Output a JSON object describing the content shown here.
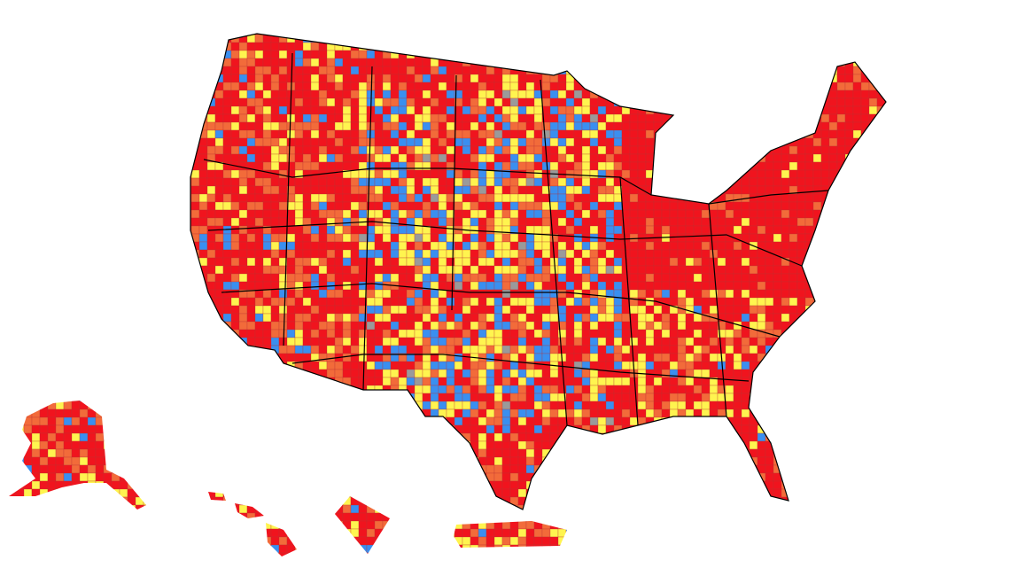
{
  "palette": [
    "#f0141e",
    "#f26b3a",
    "#fff44f",
    "#3a8ff0",
    "#9a9a9a"
  ]
}
